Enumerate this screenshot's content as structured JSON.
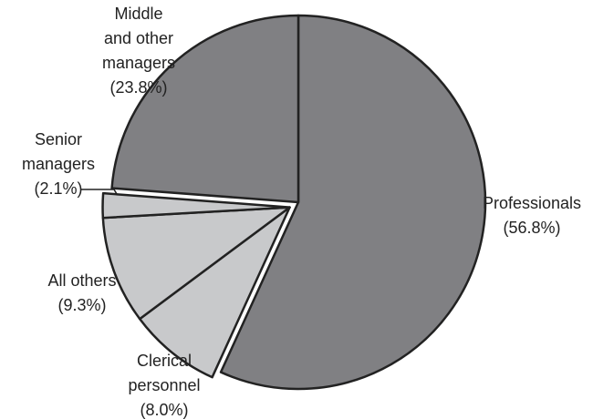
{
  "chart_data": {
    "type": "pie",
    "categories": [
      "Professionals",
      "Clerical personnel",
      "All others",
      "Senior managers",
      "Middle and other managers"
    ],
    "values": [
      56.8,
      8.0,
      9.3,
      2.1,
      23.8
    ],
    "value_labels": [
      "(56.8%)",
      "(8.0%)",
      "(9.3%)",
      "(2.1%)",
      "(23.8%)"
    ],
    "colors": [
      "#808083",
      "#c8c9cb",
      "#c8c9cb",
      "#c8c9cb",
      "#808083"
    ],
    "exploded": [
      false,
      true,
      true,
      true,
      false
    ]
  }
}
